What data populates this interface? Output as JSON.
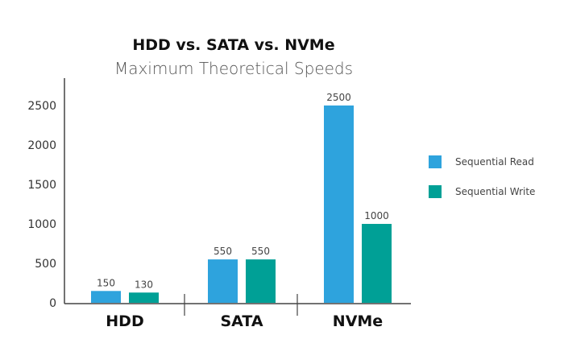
{
  "chart_data": {
    "type": "bar",
    "title": "HDD vs. SATA vs. NVMe",
    "subtitle": "Maximum Theoretical Speeds",
    "categories": [
      "HDD",
      "SATA",
      "NVMe"
    ],
    "series": [
      {
        "name": "Sequential Read",
        "values": [
          150,
          550,
          2500
        ],
        "color": "#2ea3dd"
      },
      {
        "name": "Sequential Write",
        "values": [
          130,
          550,
          1000
        ],
        "color": "#00a096"
      }
    ],
    "yticks": [
      "0",
      "500",
      "1000",
      "1500",
      "2000",
      "2500"
    ],
    "ylim": [
      0,
      2500
    ],
    "xlabel": "",
    "ylabel": "",
    "grid": false,
    "legend": "right",
    "data_labels": true
  }
}
